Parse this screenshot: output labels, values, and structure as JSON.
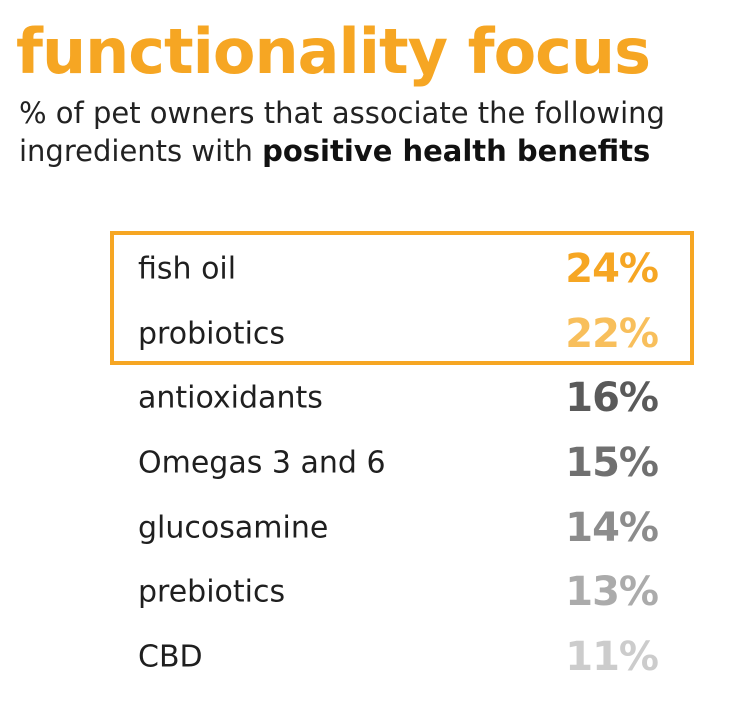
{
  "header": {
    "title": "functionality focus",
    "subtitle_line1": "% of pet owners that associate the following",
    "subtitle_line2_plain": "ingredients with ",
    "subtitle_line2_bold": "positive health benefits"
  },
  "colors": {
    "accent": "#F6A623",
    "accent_light": "#F8BF5C",
    "box_border": "#F6A623"
  },
  "chart_data": {
    "type": "table",
    "title": "functionality focus",
    "subtitle": "% of pet owners that associate the following ingredients with positive health benefits",
    "highlighted": [
      "fish oil",
      "probiotics"
    ],
    "rows": [
      {
        "label": "fish oil",
        "value": 24,
        "display": "24%",
        "color": "#F6A623"
      },
      {
        "label": "probiotics",
        "value": 22,
        "display": "22%",
        "color": "#F8BF5C"
      },
      {
        "label": "antioxidants",
        "value": 16,
        "display": "16%",
        "color": "#5A5A5A"
      },
      {
        "label": "Omegas 3 and 6",
        "value": 15,
        "display": "15%",
        "color": "#707070"
      },
      {
        "label": "glucosamine",
        "value": 14,
        "display": "14%",
        "color": "#8C8C8C"
      },
      {
        "label": "prebiotics",
        "value": 13,
        "display": "13%",
        "color": "#ABABAB"
      },
      {
        "label": "CBD",
        "value": 11,
        "display": "11%",
        "color": "#CCCCCC"
      }
    ]
  }
}
